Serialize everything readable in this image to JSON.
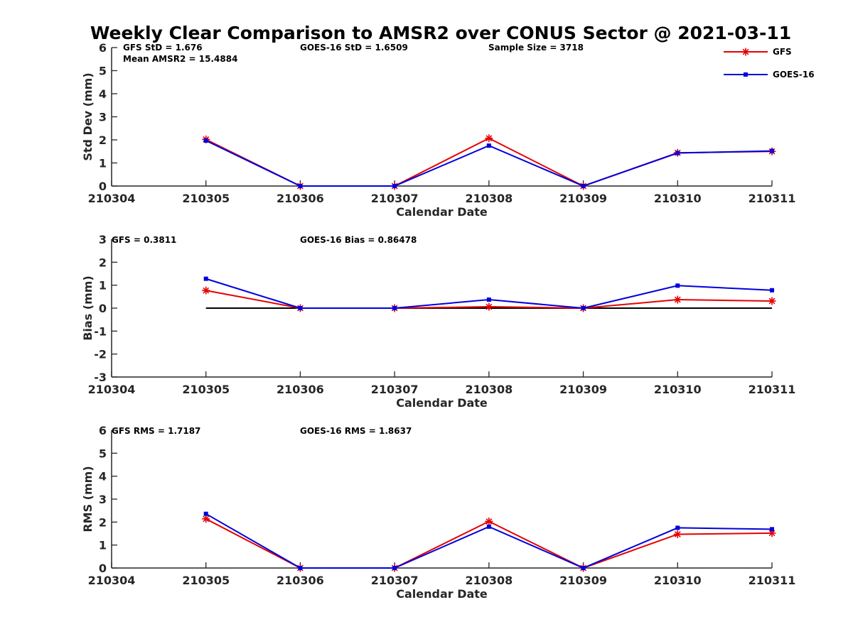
{
  "title": "Weekly Clear Comparison to AMSR2 over CONUS Sector @ 2021-03-11",
  "colors": {
    "GFS": "#e60000",
    "GOES-16": "#0000dd",
    "zero_line": "#000000",
    "axis": "#262626"
  },
  "legend": {
    "placement": "top-right",
    "entries": [
      {
        "name": "GFS",
        "marker": "asterisk"
      },
      {
        "name": "GOES-16",
        "marker": "square"
      }
    ]
  },
  "chart_data": [
    {
      "type": "line",
      "xlabel": "Calendar Date",
      "ylabel": "Std Dev (mm)",
      "x": [
        "210304",
        "210305",
        "210306",
        "210307",
        "210308",
        "210309",
        "210310",
        "210311"
      ],
      "ylim": [
        0,
        6
      ],
      "yticks": [
        "0",
        "1",
        "2",
        "3",
        "4",
        "5",
        "6"
      ],
      "annotations": [
        "GFS StD = 1.676",
        "Mean AMSR2 = 15.4884",
        "GOES-16 StD = 1.6509",
        "Sample Size = 3718"
      ],
      "series": [
        {
          "name": "GFS",
          "values": [
            null,
            2.02,
            0.0,
            0.0,
            2.07,
            0.0,
            1.44,
            1.5
          ]
        },
        {
          "name": "GOES-16",
          "values": [
            null,
            1.97,
            0.0,
            0.0,
            1.75,
            0.0,
            1.43,
            1.52
          ]
        }
      ],
      "zero_line": false
    },
    {
      "type": "line",
      "xlabel": "Calendar Date",
      "ylabel": "Bias (mm)",
      "x": [
        "210304",
        "210305",
        "210306",
        "210307",
        "210308",
        "210309",
        "210310",
        "210311"
      ],
      "ylim": [
        -3,
        3
      ],
      "yticks": [
        "-3",
        "-2",
        "-1",
        "0",
        "1",
        "2",
        "3"
      ],
      "annotations": [
        "GFS = 0.3811",
        "GOES-16 Bias  = 0.86478"
      ],
      "series": [
        {
          "name": "GFS",
          "values": [
            null,
            0.77,
            0.0,
            0.0,
            0.06,
            0.0,
            0.37,
            0.31
          ]
        },
        {
          "name": "GOES-16",
          "values": [
            null,
            1.28,
            0.0,
            0.0,
            0.37,
            0.0,
            0.98,
            0.78
          ]
        }
      ],
      "zero_line": true
    },
    {
      "type": "line",
      "xlabel": "Calendar Date",
      "ylabel": "RMS (mm)",
      "x": [
        "210304",
        "210305",
        "210306",
        "210307",
        "210308",
        "210309",
        "210310",
        "210311"
      ],
      "ylim": [
        0,
        6
      ],
      "yticks": [
        "0",
        "1",
        "2",
        "3",
        "4",
        "5",
        "6"
      ],
      "annotations": [
        "GFS RMS = 1.7187",
        "GOES-16 RMS = 1.8637"
      ],
      "series": [
        {
          "name": "GFS",
          "values": [
            null,
            2.14,
            0.0,
            0.0,
            2.03,
            0.0,
            1.47,
            1.52
          ]
        },
        {
          "name": "GOES-16",
          "values": [
            null,
            2.36,
            0.0,
            0.0,
            1.8,
            0.0,
            1.75,
            1.69
          ]
        }
      ],
      "zero_line": false
    }
  ]
}
